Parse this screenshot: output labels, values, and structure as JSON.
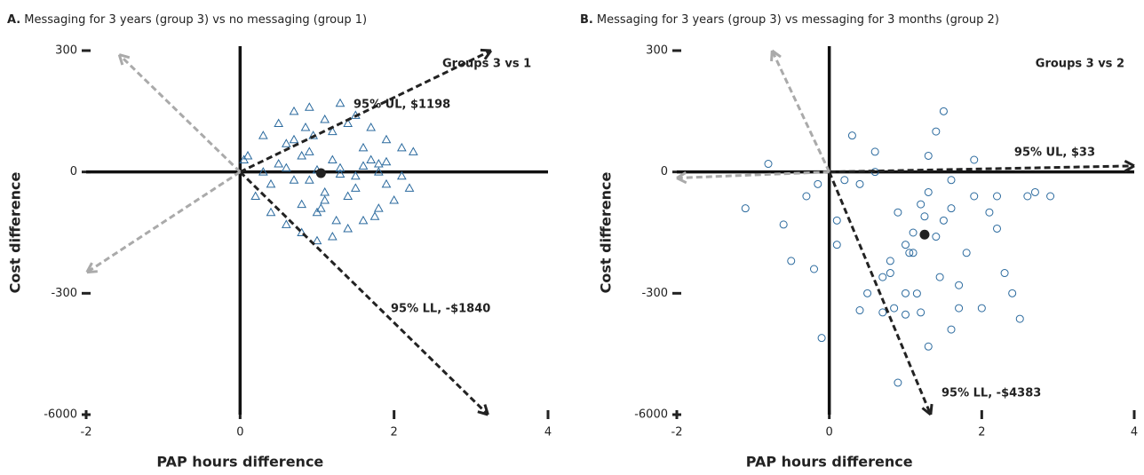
{
  "chart_data": [
    {
      "type": "scatter",
      "panel": "A.",
      "title": "Messaging for 3 years (group 3) vs no messaging (group 1)",
      "xlabel": "PAP hours difference",
      "ylabel": "Cost difference",
      "xlim": [
        -2,
        4
      ],
      "xticks": [
        -2,
        0,
        2,
        4
      ],
      "ylim": [
        -6000,
        300
      ],
      "yticks": [
        300,
        0,
        -300,
        -6000
      ],
      "marker": "triangle",
      "color": "#2b6a9e",
      "x": [
        0.1,
        0.2,
        0.3,
        0.4,
        0.5,
        0.6,
        0.7,
        0.8,
        0.9,
        1.0,
        1.1,
        1.2,
        1.3,
        1.4,
        1.5,
        1.6,
        1.7,
        1.8,
        1.9,
        2.0,
        2.1,
        2.2,
        0.5,
        0.7,
        0.9,
        1.1,
        1.3,
        1.5,
        1.7,
        1.9,
        0.6,
        0.8,
        1.0,
        1.2,
        1.4,
        1.6,
        1.8,
        0.3,
        0.6,
        0.9,
        1.2,
        1.5,
        1.8,
        2.1,
        0.4,
        0.8,
        1.0,
        1.3,
        1.6,
        1.9,
        0.05,
        0.7,
        1.1,
        1.4,
        1.75,
        2.25,
        0.95,
        1.05,
        1.25,
        0.85
      ],
      "values": [
        40,
        -60,
        90,
        -100,
        120,
        -130,
        150,
        -150,
        160,
        -170,
        130,
        -160,
        170,
        -140,
        140,
        -120,
        110,
        -90,
        80,
        -70,
        60,
        -40,
        20,
        -20,
        50,
        -50,
        10,
        -10,
        30,
        -30,
        70,
        -80,
        -100,
        100,
        -60,
        60,
        0,
        0,
        10,
        -20,
        30,
        -40,
        20,
        -10,
        -30,
        40,
        5,
        -5,
        15,
        25,
        30,
        80,
        -70,
        120,
        -110,
        50,
        90,
        -90,
        -120,
        110
      ],
      "mean": {
        "x": 1.05,
        "y": -3
      },
      "arrows": [
        {
          "x": 3.26,
          "y": 300,
          "color": "#222222"
        },
        {
          "x": 3.22,
          "y": -6000,
          "color": "#222222"
        },
        {
          "x": -1.57,
          "y": 290,
          "color": "#aaaaaa"
        },
        {
          "x": -1.99,
          "y": -248,
          "color": "#aaaaaa"
        }
      ],
      "annotations": [
        "Groups 3 vs 1",
        "95% UL, $1198",
        "95% LL, -$1840"
      ]
    },
    {
      "type": "scatter",
      "panel": "B.",
      "title": "Messaging for 3 years (group 3) vs messaging for 3 months (group 2)",
      "xlabel": "PAP hours difference",
      "ylabel": "Cost difference",
      "xlim": [
        -2,
        4
      ],
      "xticks": [
        -2,
        0,
        2,
        4
      ],
      "ylim": [
        -6000,
        300
      ],
      "yticks": [
        300,
        0,
        -300,
        -6000
      ],
      "marker": "circle",
      "color": "#2b6a9e",
      "x": [
        -1.1,
        -0.8,
        -0.5,
        -0.3,
        -0.1,
        0.1,
        0.3,
        0.5,
        0.7,
        0.9,
        1.1,
        1.3,
        1.5,
        1.7,
        1.9,
        2.1,
        2.3,
        2.5,
        2.7,
        2.9,
        -0.6,
        -0.2,
        0.2,
        0.6,
        1.0,
        1.4,
        1.8,
        2.2,
        2.6,
        0.4,
        0.8,
        1.2,
        1.6,
        2.0,
        2.4,
        0.6,
        0.9,
        1.1,
        1.3,
        1.5,
        1.7,
        1.0,
        1.2,
        1.4,
        0.8,
        1.6,
        0.1,
        0.4,
        0.7,
        1.0,
        1.3,
        1.6,
        1.9,
        2.2,
        -0.15,
        0.85,
        1.15,
        1.45,
        1.25,
        1.05
      ],
      "values": [
        -90,
        20,
        -220,
        -60,
        -2400,
        -180,
        90,
        -300,
        -1200,
        -4500,
        -150,
        -2800,
        150,
        -1000,
        -60,
        -100,
        -250,
        -1500,
        -50,
        -60,
        -130,
        -240,
        -20,
        50,
        -300,
        100,
        -200,
        -60,
        -60,
        -1100,
        -250,
        -1200,
        -2000,
        -1000,
        -300,
        0,
        -100,
        -200,
        40,
        -120,
        -280,
        -180,
        -80,
        -160,
        -220,
        -90,
        -120,
        -30,
        -260,
        -1300,
        -50,
        -20,
        30,
        -140,
        -30,
        -1000,
        -310,
        -260,
        -110,
        -200
      ],
      "mean": {
        "x": 1.25,
        "y": -155
      },
      "arrows": [
        {
          "x": 4,
          "y": 15,
          "color": "#222222"
        },
        {
          "x": 1.33,
          "y": -6000,
          "color": "#222222"
        },
        {
          "x": -0.75,
          "y": 300,
          "color": "#aaaaaa"
        },
        {
          "x": -2,
          "y": -15,
          "color": "#aaaaaa"
        }
      ],
      "annotations": [
        "Groups 3 vs 2",
        "95% UL, $33",
        "95% LL, -$4383"
      ]
    }
  ]
}
